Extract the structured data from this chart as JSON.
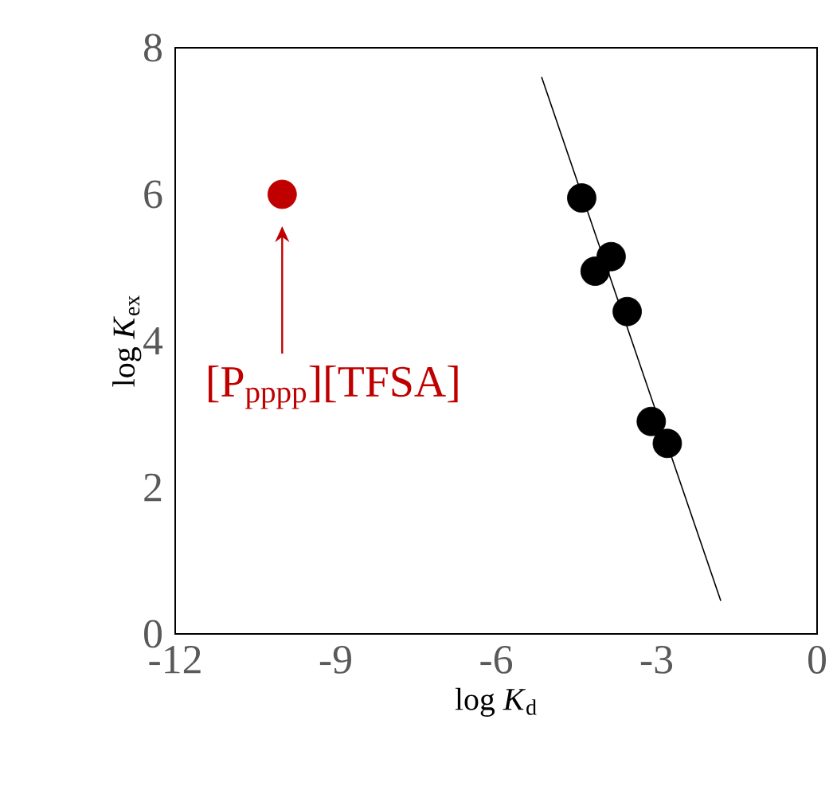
{
  "chart_data": {
    "type": "scatter",
    "xlabel": "log *K*$_{d}$",
    "ylabel": "log *K*$_{ex}$",
    "xlim": [
      -12,
      0
    ],
    "ylim": [
      0,
      8
    ],
    "xticks": [
      -12,
      -9,
      -6,
      -3,
      0
    ],
    "yticks": [
      0,
      2,
      4,
      6,
      8
    ],
    "series": [
      {
        "color": "#000000",
        "marker": "circle",
        "x": [
          -4.4,
          -4.15,
          -3.85,
          -3.55,
          -3.1,
          -2.8
        ],
        "values": [
          5.95,
          4.95,
          5.15,
          4.4,
          2.9,
          2.6
        ]
      },
      {
        "color": "#c00000",
        "marker": "circle",
        "x": [
          -10
        ],
        "values": [
          6
        ]
      },
      {
        "type": "line",
        "color": "#000000",
        "marker": "none",
        "x": [
          -5.15,
          -1.8
        ],
        "values": [
          7.6,
          0.45
        ]
      }
    ],
    "annotations": [
      "[P$_{pppp}$][TFSA]"
    ]
  }
}
